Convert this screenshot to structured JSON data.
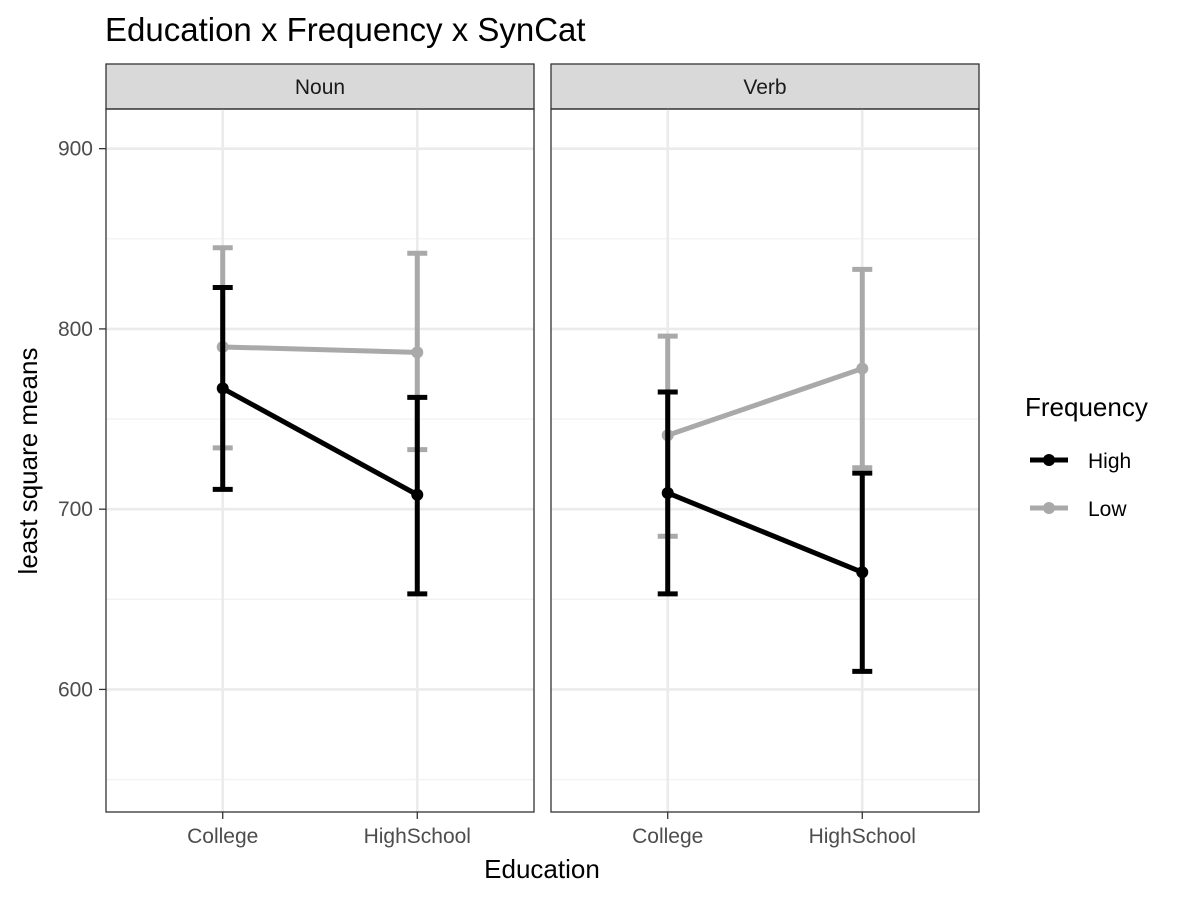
{
  "chart_data": {
    "type": "line",
    "title": "Education x Frequency x SynCat",
    "xlabel": "Education",
    "ylabel": "least square means",
    "categories": [
      "College",
      "HighSchool"
    ],
    "ylim": [
      532,
      922
    ],
    "y_ticks": [
      600,
      700,
      800,
      900
    ],
    "grid": true,
    "legend_title": "Frequency",
    "legend_position": "right",
    "panels": [
      {
        "label": "Noun",
        "series": [
          {
            "name": "High",
            "color": "#000000",
            "values": [
              767,
              708
            ],
            "lower": [
              711,
              653
            ],
            "upper": [
              823,
              762
            ]
          },
          {
            "name": "Low",
            "color": "#a9a9a9",
            "values": [
              790,
              787
            ],
            "lower": [
              734,
              733
            ],
            "upper": [
              845,
              842
            ]
          }
        ]
      },
      {
        "label": "Verb",
        "series": [
          {
            "name": "High",
            "color": "#000000",
            "values": [
              709,
              665
            ],
            "lower": [
              653,
              610
            ],
            "upper": [
              765,
              720
            ]
          },
          {
            "name": "Low",
            "color": "#a9a9a9",
            "values": [
              741,
              778
            ],
            "lower": [
              685,
              723
            ],
            "upper": [
              796,
              833
            ]
          }
        ]
      }
    ]
  }
}
